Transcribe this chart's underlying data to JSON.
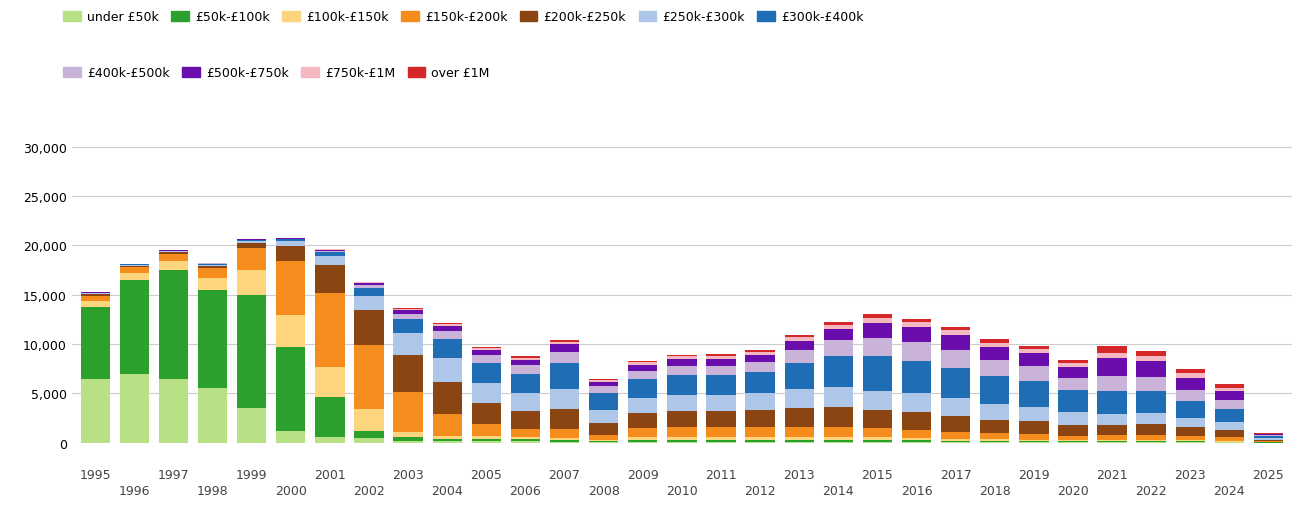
{
  "years": [
    1995,
    1996,
    1997,
    1998,
    1999,
    2000,
    2001,
    2002,
    2003,
    2004,
    2005,
    2006,
    2007,
    2008,
    2009,
    2010,
    2011,
    2012,
    2013,
    2014,
    2015,
    2016,
    2017,
    2018,
    2019,
    2020,
    2021,
    2022,
    2023,
    2024,
    2025
  ],
  "categories": [
    "under £50k",
    "£50k-£100k",
    "£100k-£150k",
    "£150k-£200k",
    "£200k-£250k",
    "£250k-£300k",
    "£300k-£400k",
    "£400k-£500k",
    "£500k-£750k",
    "£750k-£1M",
    "over £1M"
  ],
  "colors": [
    "#b8e186",
    "#2ca02c",
    "#fdd57e",
    "#f58c1e",
    "#8b4513",
    "#aec6e8",
    "#1f6db5",
    "#c9b3d9",
    "#6a0dad",
    "#f4b8c1",
    "#d62728"
  ],
  "data": {
    "under £50k": [
      6500,
      7000,
      6500,
      5500,
      3500,
      1200,
      600,
      500,
      200,
      200,
      200,
      200,
      100,
      100,
      100,
      100,
      100,
      100,
      100,
      100,
      100,
      100,
      50,
      50,
      50,
      50,
      50,
      50,
      50,
      30,
      10
    ],
    "£50k-£100k": [
      7200,
      9500,
      11000,
      10000,
      11500,
      8500,
      4000,
      700,
      400,
      200,
      200,
      200,
      200,
      100,
      200,
      200,
      200,
      200,
      200,
      200,
      200,
      200,
      150,
      150,
      100,
      100,
      100,
      100,
      100,
      80,
      20
    ],
    "£100k-£150k": [
      700,
      700,
      900,
      1200,
      2500,
      3200,
      3100,
      2200,
      500,
      300,
      250,
      200,
      200,
      100,
      300,
      300,
      300,
      300,
      300,
      300,
      250,
      200,
      200,
      150,
      150,
      100,
      100,
      100,
      100,
      70,
      20
    ],
    "£150k-£200k": [
      500,
      600,
      700,
      1000,
      2200,
      5500,
      7500,
      6500,
      4000,
      2200,
      1200,
      800,
      900,
      500,
      900,
      1000,
      1000,
      1000,
      1000,
      1000,
      900,
      800,
      700,
      600,
      550,
      450,
      500,
      500,
      400,
      350,
      80
    ],
    "£200k-£250k": [
      150,
      150,
      200,
      250,
      500,
      1500,
      2800,
      3500,
      3800,
      3200,
      2200,
      1800,
      2000,
      1200,
      1500,
      1600,
      1600,
      1700,
      1900,
      2000,
      1900,
      1800,
      1600,
      1400,
      1300,
      1100,
      1000,
      1100,
      900,
      750,
      150
    ],
    "£250k-£300k": [
      80,
      80,
      80,
      100,
      200,
      500,
      900,
      1500,
      2200,
      2500,
      2000,
      1800,
      2000,
      1300,
      1500,
      1600,
      1600,
      1700,
      1900,
      2000,
      1900,
      1900,
      1800,
      1600,
      1500,
      1300,
      1200,
      1200,
      1000,
      800,
      150
    ],
    "£300k-£400k": [
      50,
      50,
      60,
      70,
      100,
      200,
      400,
      800,
      1400,
      1900,
      2000,
      2000,
      2700,
      1700,
      2000,
      2100,
      2100,
      2200,
      2700,
      3200,
      3500,
      3300,
      3100,
      2800,
      2600,
      2200,
      2300,
      2200,
      1700,
      1300,
      200
    ],
    "£400k-£500k": [
      25,
      25,
      30,
      35,
      50,
      80,
      150,
      280,
      550,
      800,
      800,
      850,
      1100,
      700,
      800,
      900,
      900,
      1000,
      1300,
      1600,
      1900,
      1900,
      1800,
      1600,
      1500,
      1300,
      1500,
      1400,
      1100,
      900,
      130
    ],
    "£500k-£750k": [
      20,
      20,
      25,
      30,
      40,
      60,
      100,
      180,
      350,
      500,
      500,
      550,
      750,
      450,
      600,
      680,
      700,
      720,
      950,
      1150,
      1500,
      1500,
      1500,
      1350,
      1300,
      1100,
      1800,
      1600,
      1250,
      950,
      120
    ],
    "£750k-£1M": [
      10,
      10,
      12,
      15,
      20,
      25,
      45,
      80,
      140,
      185,
      200,
      220,
      290,
      180,
      230,
      260,
      260,
      270,
      340,
      410,
      490,
      490,
      490,
      440,
      430,
      380,
      560,
      520,
      420,
      330,
      45
    ],
    "over £1M": [
      8,
      8,
      10,
      12,
      15,
      20,
      35,
      55,
      100,
      140,
      150,
      150,
      200,
      130,
      170,
      190,
      195,
      200,
      250,
      300,
      360,
      380,
      360,
      330,
      325,
      280,
      640,
      560,
      460,
      370,
      45
    ]
  },
  "ylim": [
    0,
    31000
  ],
  "yticks": [
    0,
    5000,
    10000,
    15000,
    20000,
    25000,
    30000
  ],
  "grid_color": "#cccccc"
}
